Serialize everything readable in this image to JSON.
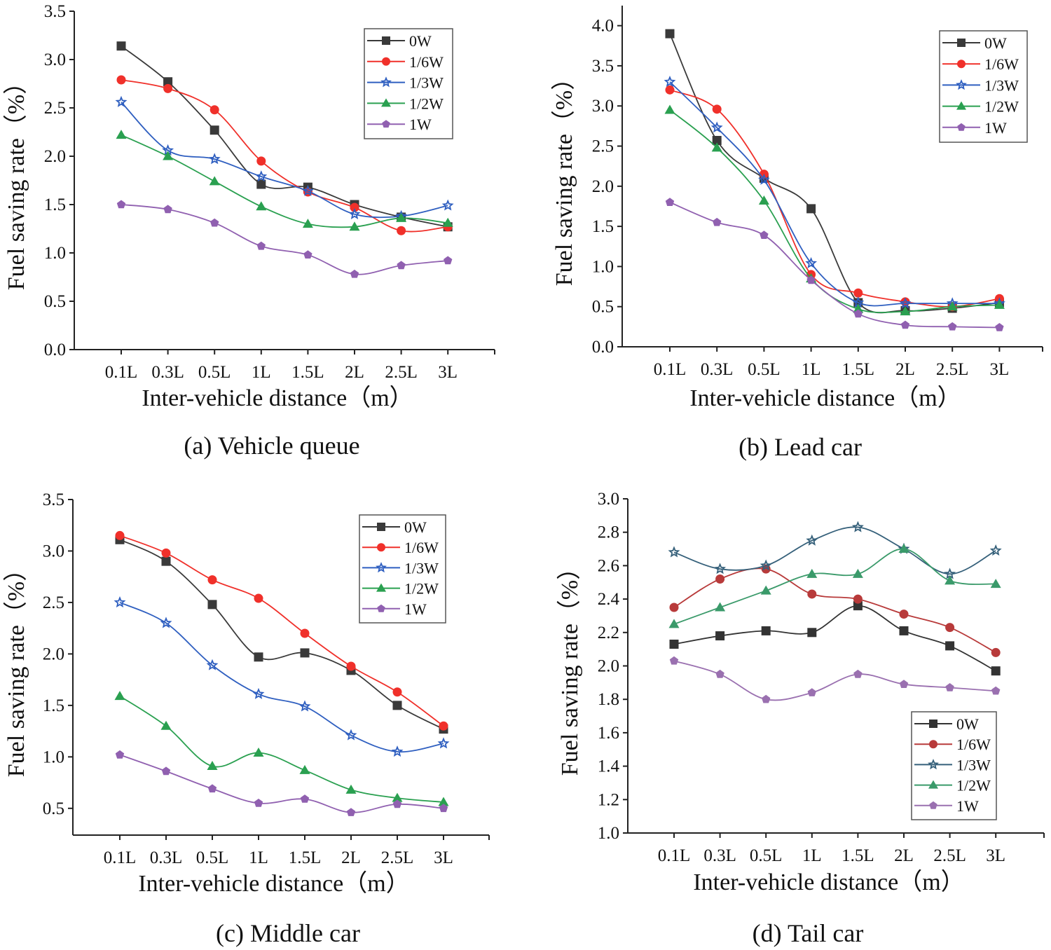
{
  "chart_data": [
    {
      "type": "line",
      "caption": "(a) Vehicle queue",
      "xlabel": "Inter-vehicle distance（m）",
      "ylabel": "Fuel saving rate（%）",
      "categories": [
        "0.1L",
        "0.3L",
        "0.5L",
        "1L",
        "1.5L",
        "2L",
        "2.5L",
        "3L"
      ],
      "ylim": [
        0,
        3.5
      ],
      "yticks": [
        "0.0",
        "0.5",
        "1.0",
        "1.5",
        "2.0",
        "2.5",
        "3.0",
        "3.5"
      ],
      "legend": "top-right",
      "series": [
        {
          "name": "0W",
          "marker": "square",
          "color": "#3a3a3a",
          "values": [
            3.14,
            2.77,
            2.27,
            1.71,
            1.68,
            1.5,
            1.37,
            1.27
          ]
        },
        {
          "name": "1/6W",
          "marker": "circle",
          "color": "#f0302a",
          "values": [
            2.79,
            2.7,
            2.48,
            1.95,
            1.63,
            1.47,
            1.23,
            1.27
          ]
        },
        {
          "name": "1/3W",
          "marker": "star",
          "color": "#2f5fc0",
          "values": [
            2.56,
            2.06,
            1.97,
            1.79,
            1.64,
            1.4,
            1.38,
            1.49
          ]
        },
        {
          "name": "1/2W",
          "marker": "triangle",
          "color": "#2aa050",
          "values": [
            2.22,
            2.0,
            1.74,
            1.48,
            1.3,
            1.27,
            1.36,
            1.31
          ]
        },
        {
          "name": "1W",
          "marker": "pentagon",
          "color": "#9060b0",
          "values": [
            1.5,
            1.45,
            1.31,
            1.07,
            0.98,
            0.78,
            0.87,
            0.92
          ]
        }
      ]
    },
    {
      "type": "line",
      "caption": "(b) Lead car",
      "xlabel": "Inter-vehicle distance（m）",
      "ylabel": "Fuel saving rate（%）",
      "categories": [
        "0.1L",
        "0.3L",
        "0.5L",
        "1L",
        "1.5L",
        "2L",
        "2.5L",
        "3L"
      ],
      "ylim": [
        0,
        4.25
      ],
      "yticks": [
        "0.0",
        "0.5",
        "1.0",
        "1.5",
        "2.0",
        "2.5",
        "3.0",
        "3.5",
        "4.0"
      ],
      "legend": "top-right",
      "series": [
        {
          "name": "0W",
          "marker": "square",
          "color": "#3a3a3a",
          "values": [
            3.9,
            2.57,
            2.1,
            1.72,
            0.55,
            0.45,
            0.48,
            0.55
          ]
        },
        {
          "name": "1/6W",
          "marker": "circle",
          "color": "#f0302a",
          "values": [
            3.2,
            2.96,
            2.15,
            0.9,
            0.67,
            0.56,
            0.5,
            0.6
          ]
        },
        {
          "name": "1/3W",
          "marker": "star",
          "color": "#2f5fc0",
          "values": [
            3.3,
            2.73,
            2.08,
            1.04,
            0.55,
            0.54,
            0.54,
            0.54
          ]
        },
        {
          "name": "1/2W",
          "marker": "triangle",
          "color": "#2aa050",
          "values": [
            2.95,
            2.48,
            1.82,
            0.85,
            0.47,
            0.44,
            0.5,
            0.52
          ]
        },
        {
          "name": "1W",
          "marker": "pentagon",
          "color": "#9060b0",
          "values": [
            1.8,
            1.55,
            1.39,
            0.83,
            0.41,
            0.27,
            0.25,
            0.24
          ]
        }
      ]
    },
    {
      "type": "line",
      "caption": "(c) Middle car",
      "xlabel": "Inter-vehicle distance（m）",
      "ylabel": "Fuel saving rate（%）",
      "categories": [
        "0.1L",
        "0.3L",
        "0.5L",
        "1L",
        "1.5L",
        "2L",
        "2.5L",
        "3L"
      ],
      "ylim": [
        0.24,
        3.5
      ],
      "yticks": [
        "0.5",
        "1.0",
        "1.5",
        "2.0",
        "2.5",
        "3.0",
        "3.5"
      ],
      "legend": "top-right",
      "series": [
        {
          "name": "0W",
          "marker": "square",
          "color": "#3a3a3a",
          "values": [
            3.11,
            2.9,
            2.48,
            1.97,
            2.01,
            1.84,
            1.5,
            1.27
          ]
        },
        {
          "name": "1/6W",
          "marker": "circle",
          "color": "#f0302a",
          "values": [
            3.15,
            2.98,
            2.72,
            2.54,
            2.2,
            1.88,
            1.63,
            1.3
          ]
        },
        {
          "name": "1/3W",
          "marker": "star",
          "color": "#2f5fc0",
          "values": [
            2.5,
            2.3,
            1.89,
            1.61,
            1.49,
            1.21,
            1.05,
            1.13
          ]
        },
        {
          "name": "1/2W",
          "marker": "triangle",
          "color": "#2aa050",
          "values": [
            1.59,
            1.3,
            0.91,
            1.04,
            0.87,
            0.68,
            0.6,
            0.56
          ]
        },
        {
          "name": "1W",
          "marker": "pentagon",
          "color": "#9060b0",
          "values": [
            1.02,
            0.86,
            0.69,
            0.55,
            0.59,
            0.46,
            0.54,
            0.5
          ]
        }
      ]
    },
    {
      "type": "line",
      "caption": "(d) Tail car",
      "xlabel": "Inter-vehicle distance（m）",
      "ylabel": "Fuel saving rate（%）",
      "categories": [
        "0.1L",
        "0.3L",
        "0.5L",
        "1L",
        "1.5L",
        "2L",
        "2.5L",
        "3L"
      ],
      "ylim": [
        1.0,
        3.0
      ],
      "yticks": [
        "1.0",
        "1.2",
        "1.4",
        "1.6",
        "1.8",
        "2.0",
        "2.2",
        "2.4",
        "2.6",
        "2.8",
        "3.0"
      ],
      "legend": "bottom-right",
      "series": [
        {
          "name": "0W",
          "marker": "square",
          "color": "#333333",
          "values": [
            2.13,
            2.18,
            2.21,
            2.2,
            2.36,
            2.21,
            2.12,
            1.97
          ]
        },
        {
          "name": "1/6W",
          "marker": "circle",
          "color": "#b83a3a",
          "values": [
            2.35,
            2.52,
            2.58,
            2.43,
            2.4,
            2.31,
            2.23,
            2.08
          ]
        },
        {
          "name": "1/3W",
          "marker": "star",
          "color": "#35607a",
          "values": [
            2.68,
            2.58,
            2.6,
            2.75,
            2.83,
            2.7,
            2.55,
            2.69
          ]
        },
        {
          "name": "1/2W",
          "marker": "triangle",
          "color": "#3a9a6a",
          "values": [
            2.25,
            2.35,
            2.45,
            2.55,
            2.55,
            2.7,
            2.51,
            2.49
          ]
        },
        {
          "name": "1W",
          "marker": "pentagon",
          "color": "#9a70b0",
          "values": [
            2.03,
            1.95,
            1.8,
            1.84,
            1.95,
            1.89,
            1.87,
            1.85
          ]
        }
      ]
    }
  ]
}
